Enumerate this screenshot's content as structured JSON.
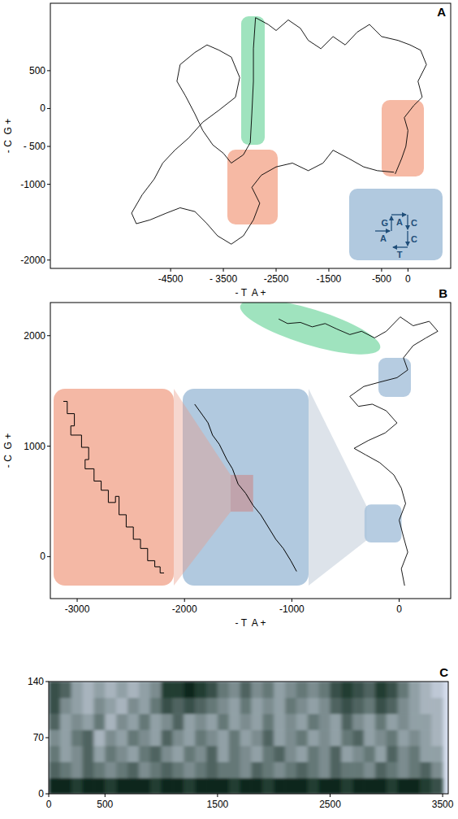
{
  "chart_data": [
    {
      "type": "line",
      "title": "A",
      "x_label": "- T  A +",
      "y_label": "- C  G +",
      "xlim": [
        -6780,
        810
      ],
      "ylim": [
        -2110,
        1390
      ],
      "xticks": [
        -4500,
        {
          "value": -3500,
          "label": "- 3500"
        },
        -2500,
        -1500,
        -500,
        0
      ],
      "yticks": [
        500,
        0,
        {
          "value": -500,
          "label": "- 500"
        },
        -1000,
        -2000
      ],
      "grid": false,
      "series": [
        {
          "color": "#000000",
          "line_style": "solid",
          "x": [
            -240,
            -120,
            -40,
            0,
            -70,
            110,
            270,
            190,
            350,
            240,
            40,
            -190,
            -500,
            -730,
            -960,
            -1190,
            -1420,
            -1650,
            -1890,
            -2040,
            -2270,
            -2500,
            -2650,
            -2890,
            -2930,
            -2930,
            -2960,
            -2990,
            -3120,
            -3350,
            -3500,
            -3700,
            -3890,
            -4040,
            -4220,
            -4380,
            -4320,
            -4040,
            -3810,
            -3580,
            -3350,
            -3190,
            -3270,
            -3580,
            -3890,
            -4160,
            -4420,
            -4650,
            -4810,
            -5040,
            -5240,
            -5150,
            -4890,
            -4580,
            -4320,
            -4040,
            -3810,
            -3610,
            -3350,
            -3120,
            -2930,
            -2810,
            -2960,
            -2780,
            -2500,
            -2190,
            -1890,
            -1610,
            -1420,
            -1120,
            -840,
            -580,
            -270
          ],
          "values": [
            -860,
            -660,
            -500,
            -290,
            -120,
            40,
            150,
            360,
            580,
            770,
            840,
            900,
            950,
            1110,
            1010,
            840,
            950,
            790,
            900,
            1060,
            1170,
            1030,
            1110,
            1200,
            790,
            360,
            -70,
            -450,
            -610,
            -720,
            -590,
            -480,
            -290,
            -70,
            170,
            360,
            580,
            740,
            840,
            770,
            680,
            410,
            150,
            -20,
            -180,
            -390,
            -550,
            -720,
            -930,
            -1140,
            -1380,
            -1520,
            -1470,
            -1380,
            -1310,
            -1360,
            -1520,
            -1680,
            -1790,
            -1680,
            -1470,
            -1250,
            -1040,
            -880,
            -770,
            -720,
            -820,
            -720,
            -550,
            -660,
            -770,
            -820,
            -840
          ]
        }
      ],
      "inset": {
        "steps": [
          "A",
          "G",
          "A",
          "C",
          "C",
          "T"
        ]
      }
    },
    {
      "type": "line",
      "title": "B",
      "x_label": "- T  A +",
      "y_label": "- C  G +",
      "xlim": [
        -3250,
        480
      ],
      "ylim": [
        -380,
        2300
      ],
      "xticks": [
        -3000,
        -2000,
        -1000,
        0
      ],
      "yticks": [
        0,
        1000,
        2000
      ],
      "grid": false,
      "series": [
        {
          "color": "#000000",
          "line_style": "solid",
          "x": [
            50,
            20,
            80,
            40,
            0,
            60,
            20,
            -50,
            -180,
            -310,
            -420,
            -290,
            -130,
            -20,
            -120,
            -250,
            -380,
            -460,
            -330,
            -180,
            -20,
            80,
            40,
            130,
            250,
            360,
            280,
            130,
            10,
            -120,
            -230,
            -350,
            -460,
            -580,
            -690,
            -810,
            -920,
            -1040,
            -1120
          ],
          "values": [
            -260,
            -110,
            40,
            180,
            330,
            480,
            620,
            740,
            850,
            920,
            980,
            1050,
            1120,
            1210,
            1320,
            1380,
            1360,
            1450,
            1540,
            1580,
            1620,
            1690,
            1800,
            1910,
            1980,
            2040,
            2130,
            2090,
            2170,
            2040,
            1980,
            2040,
            2010,
            2060,
            2110,
            2080,
            2120,
            2110,
            2150
          ]
        }
      ],
      "insets": [
        {
          "color": "#a9c3dc",
          "xlim": [
            -300,
            0
          ],
          "ylim": [
            150,
            450
          ],
          "x": [
            -285,
            -265,
            -250,
            -238,
            -220,
            -200,
            -185,
            -170,
            -150,
            -130,
            -110,
            -90,
            -70,
            -50,
            -30,
            -15
          ],
          "values": [
            435,
            418,
            405,
            385,
            370,
            345,
            330,
            305,
            290,
            270,
            255,
            235,
            215,
            200,
            180,
            163
          ]
        },
        {
          "color": "#f3b4a0",
          "xlim": [
            -190,
            -130
          ],
          "ylim": [
            260,
            320
          ],
          "x": [
            -188,
            -186,
            -186,
            -182,
            -182,
            -184,
            -184,
            -180,
            -178,
            -178,
            -174,
            -174,
            -176,
            -176,
            -171,
            -171,
            -167,
            -167,
            -163,
            -163,
            -159,
            -159,
            -157,
            -157,
            -153,
            -153,
            -149,
            -149,
            -145,
            -145,
            -141,
            -141,
            -137,
            -137,
            -134,
            -134,
            -132
          ],
          "values": [
            318,
            318,
            314,
            314,
            310,
            310,
            307,
            307,
            307,
            303,
            303,
            299,
            299,
            296,
            296,
            292,
            292,
            289,
            289,
            285,
            285,
            287,
            287,
            281,
            281,
            277,
            277,
            273,
            273,
            270,
            270,
            266,
            266,
            264,
            264,
            262,
            262
          ]
        }
      ]
    },
    {
      "type": "heatmap",
      "title": "C",
      "xlim": [
        0,
        3550
      ],
      "ylim": [
        0,
        140
      ],
      "xticks": [
        0,
        500,
        1500,
        2500,
        3500
      ],
      "yticks": [
        0,
        70,
        140
      ],
      "grid": false,
      "value_range": [
        0,
        9
      ],
      "x_bins": [
        0,
        100,
        200,
        300,
        400,
        500,
        600,
        700,
        800,
        900,
        1000,
        1100,
        1200,
        1300,
        1400,
        1500,
        1600,
        1700,
        1800,
        1900,
        2000,
        2100,
        2200,
        2300,
        2400,
        2500,
        2600,
        2700,
        2800,
        2900,
        3000,
        3100,
        3200,
        3300,
        3400,
        3500
      ],
      "y_bins": [
        0,
        20,
        40,
        60,
        80,
        100,
        120,
        140
      ],
      "cells": [
        [
          9,
          9,
          8,
          9,
          9,
          8,
          9,
          9,
          9,
          8,
          9,
          9,
          8,
          9,
          9,
          9,
          8,
          9,
          9,
          8,
          9,
          9,
          9,
          8,
          9,
          9,
          8,
          9,
          9,
          9,
          8,
          9,
          9,
          8,
          7
        ],
        [
          6,
          5,
          4,
          6,
          5,
          4,
          5,
          6,
          4,
          5,
          6,
          5,
          4,
          5,
          6,
          5,
          5,
          4,
          6,
          5,
          4,
          5,
          6,
          5,
          4,
          6,
          5,
          5,
          4,
          6,
          5,
          4,
          5,
          6,
          4
        ],
        [
          5,
          3,
          4,
          6,
          3,
          5,
          4,
          3,
          5,
          6,
          4,
          3,
          5,
          4,
          6,
          3,
          5,
          4,
          3,
          5,
          6,
          4,
          3,
          5,
          4,
          6,
          3,
          4,
          5,
          3,
          6,
          4,
          5,
          3,
          3
        ],
        [
          4,
          3,
          5,
          6,
          2,
          4,
          3,
          5,
          4,
          3,
          6,
          4,
          3,
          5,
          4,
          3,
          5,
          3,
          4,
          6,
          3,
          4,
          5,
          3,
          4,
          3,
          5,
          6,
          3,
          4,
          5,
          3,
          4,
          3,
          2
        ],
        [
          6,
          3,
          4,
          3,
          5,
          2,
          4,
          3,
          5,
          3,
          4,
          6,
          3,
          4,
          3,
          5,
          3,
          4,
          3,
          5,
          3,
          4,
          3,
          5,
          4,
          3,
          6,
          4,
          3,
          5,
          3,
          4,
          3,
          3,
          2
        ],
        [
          7,
          4,
          3,
          2,
          4,
          3,
          2,
          4,
          3,
          5,
          7,
          6,
          7,
          6,
          5,
          4,
          3,
          5,
          3,
          4,
          3,
          5,
          4,
          3,
          4,
          6,
          7,
          6,
          5,
          7,
          6,
          4,
          3,
          2,
          2
        ],
        [
          7,
          6,
          3,
          2,
          3,
          2,
          3,
          2,
          3,
          4,
          8,
          8,
          9,
          8,
          7,
          5,
          4,
          6,
          4,
          5,
          3,
          4,
          5,
          4,
          5,
          7,
          8,
          7,
          6,
          8,
          7,
          5,
          3,
          2,
          1
        ]
      ]
    }
  ]
}
